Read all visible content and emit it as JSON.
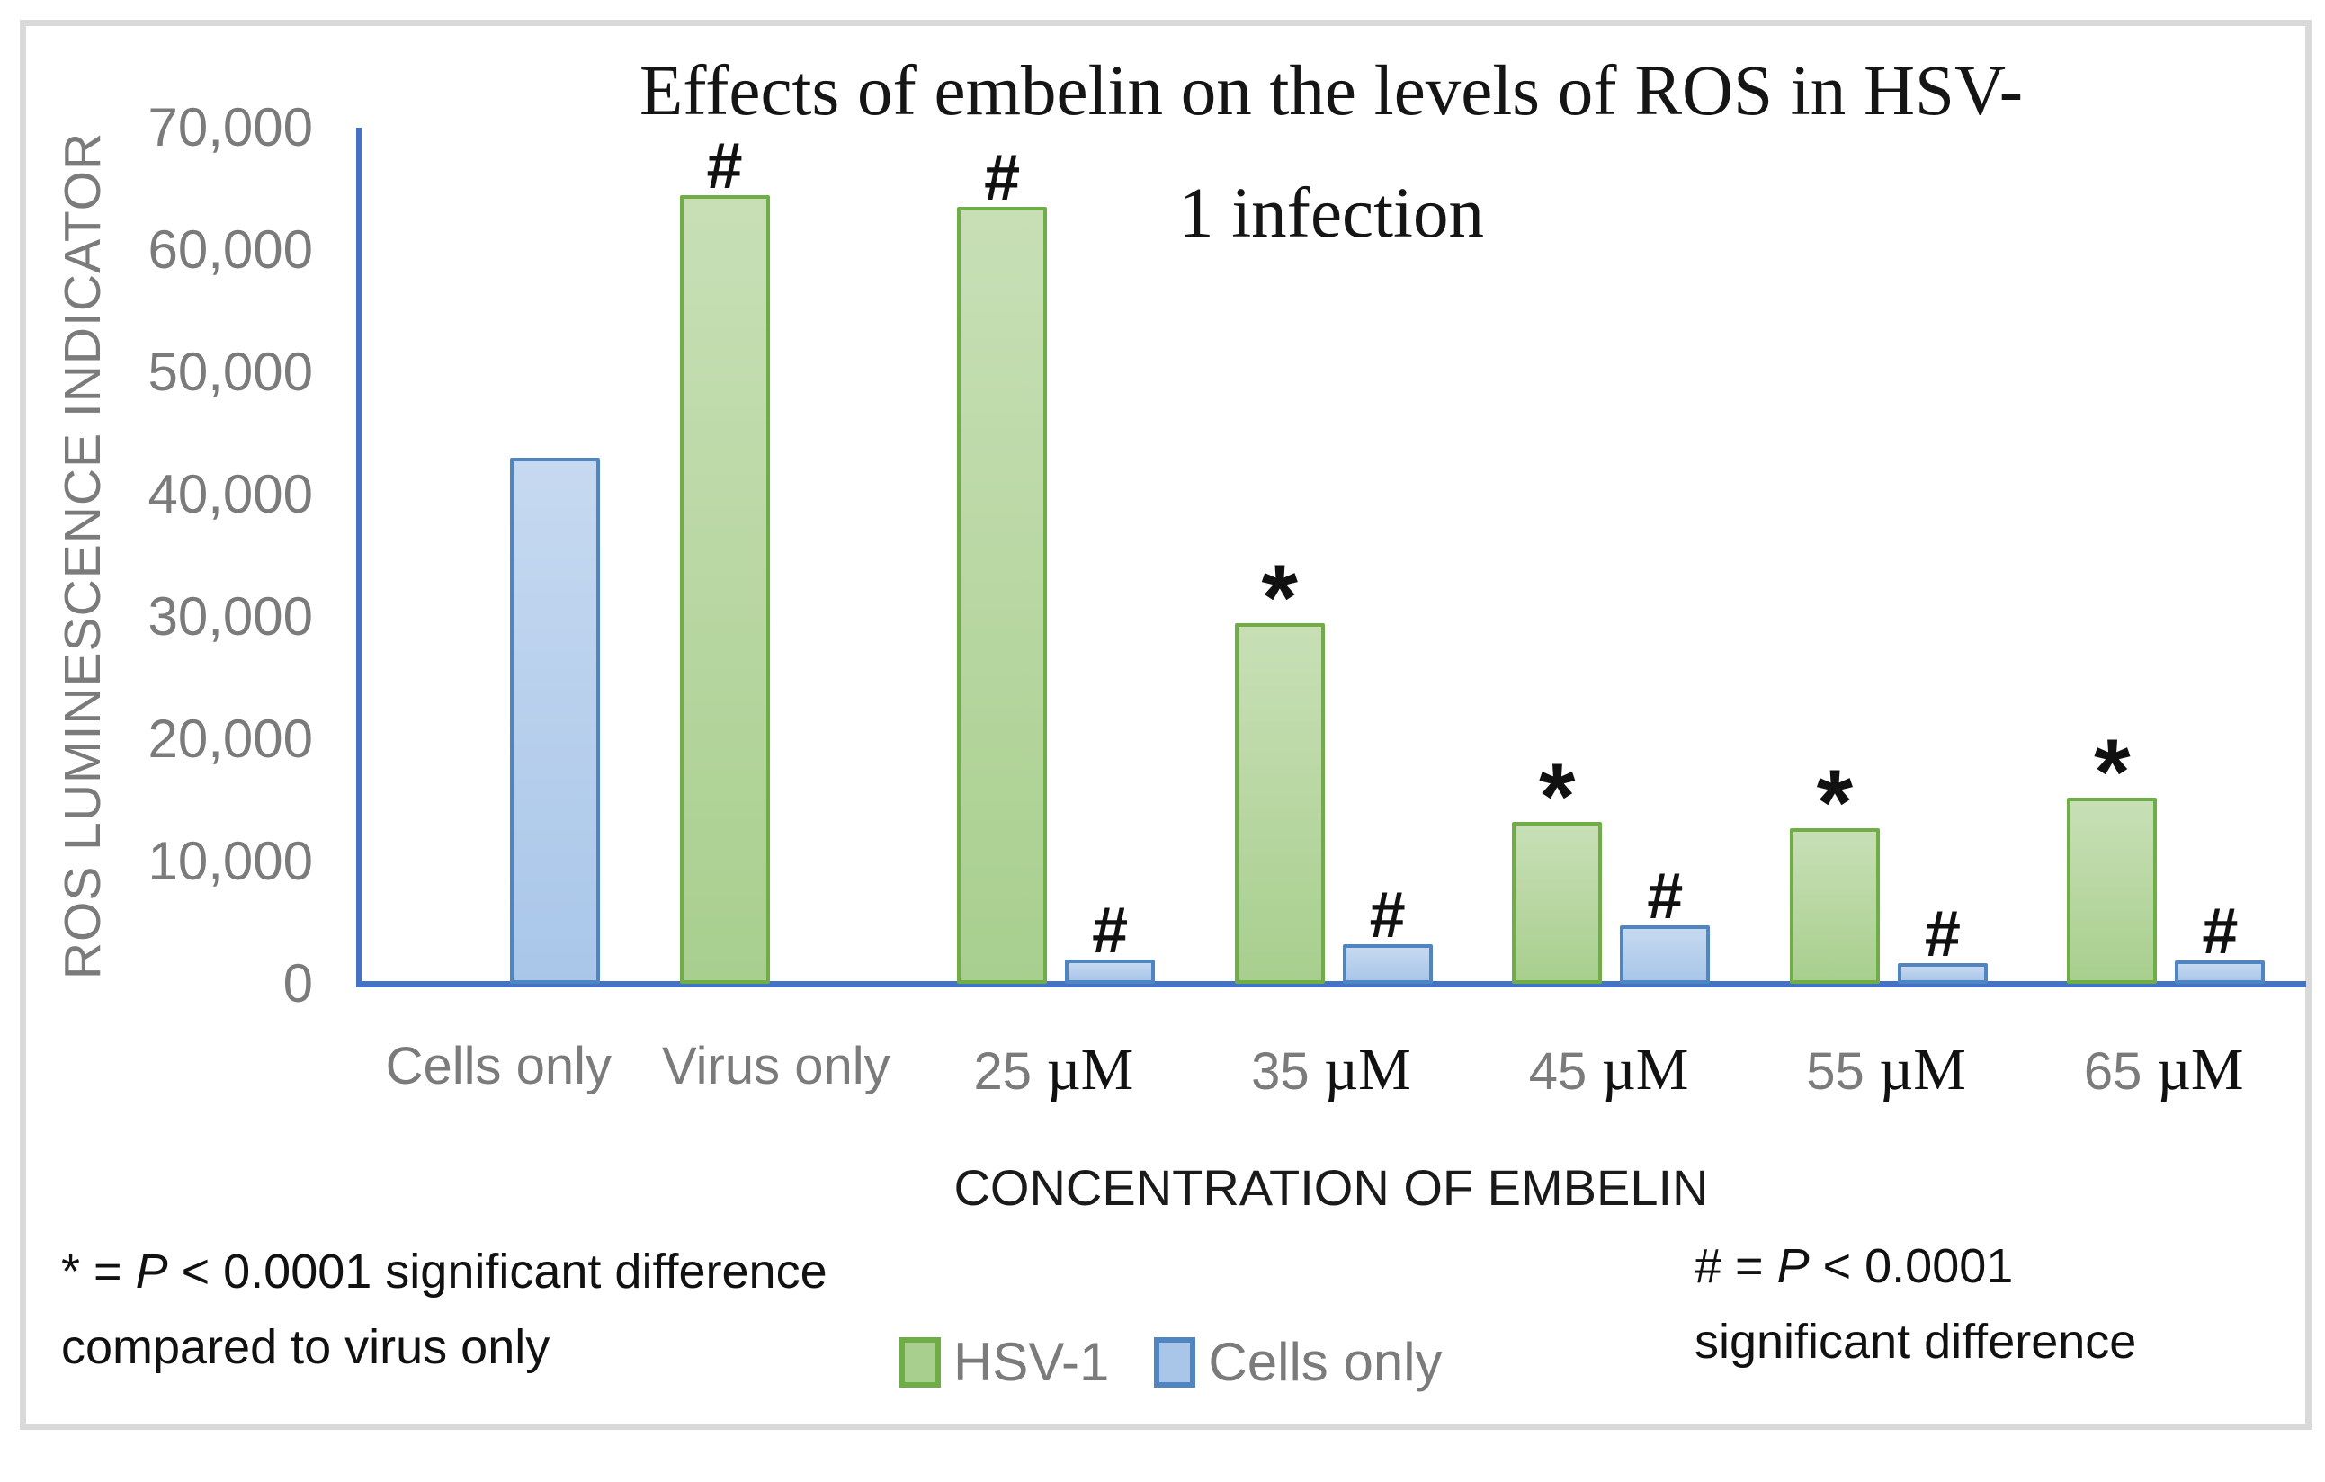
{
  "chart_data": {
    "type": "bar",
    "title": "Effects of embelin on the levels of ROS in HSV-1 infection",
    "title_lines": [
      "Effects of embelin on the levels of ROS in HSV-",
      "1 infection"
    ],
    "categories": [
      {
        "key": "cells-only",
        "text": "Cells only"
      },
      {
        "key": "virus-only",
        "text": "Virus only"
      },
      {
        "key": "25um",
        "num": "25",
        "unit": "µM"
      },
      {
        "key": "35um",
        "num": "35",
        "unit": "µM"
      },
      {
        "key": "45um",
        "num": "45",
        "unit": "µM"
      },
      {
        "key": "55um",
        "num": "55",
        "unit": "µM"
      },
      {
        "key": "65um",
        "num": "65",
        "unit": "µM"
      }
    ],
    "series": [
      {
        "name": "HSV-1",
        "fill": "#a8cf8e",
        "fill_light": "#c8dfb6",
        "border": "#6fad47",
        "values": [
          null,
          64500,
          63500,
          29500,
          13200,
          12700,
          15200
        ],
        "annotations": [
          "",
          "#",
          "#",
          "*",
          "*",
          "*",
          "*"
        ]
      },
      {
        "name": "Cells only",
        "fill": "#a9c6e9",
        "fill_light": "#c6d9f0",
        "border": "#4f86c2",
        "values": [
          43000,
          null,
          2000,
          3200,
          4800,
          1700,
          1900
        ],
        "annotations": [
          "",
          "",
          "#",
          "#",
          "#",
          "#",
          "#"
        ]
      }
    ],
    "x_axis": {
      "title": "CONCENTRATION OF EMBELIN"
    },
    "y_axis": {
      "title": "ROS LUMINESCENCE INDICATOR",
      "min": 0,
      "max": 70000,
      "tick_step": 10000,
      "tick_labels": [
        "0",
        "10,000",
        "20,000",
        "30,000",
        "40,000",
        "50,000",
        "60,000",
        "70,000"
      ]
    },
    "legend_position": "bottom",
    "grid": false,
    "axis_color": "#4472c4",
    "annotation_marks": {
      "hash": "#",
      "star": "*"
    },
    "footnotes": {
      "left": {
        "pre": "* = ",
        "p": "P",
        "rest": " < 0.0001 significant difference",
        "line2": "compared to virus only"
      },
      "right": {
        "pre": "# = ",
        "p": "P",
        "rest": " < 0.0001",
        "line2": "significant difference"
      }
    }
  }
}
